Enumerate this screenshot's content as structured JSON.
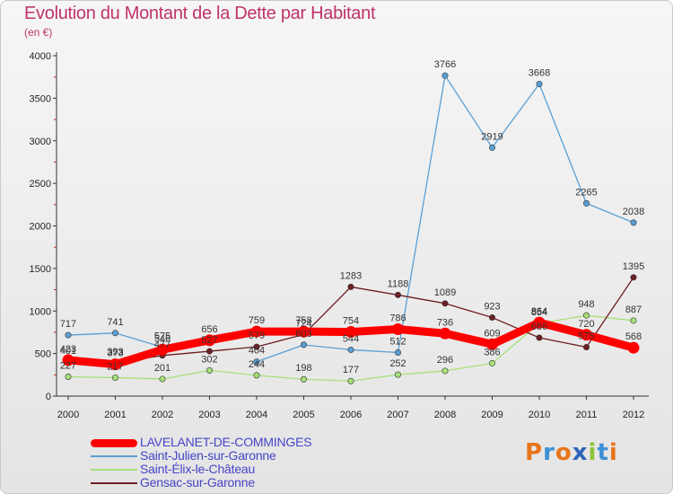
{
  "header": {
    "title": "Evolution du Montant de la Dette par Habitant",
    "subtitle": "(en €)"
  },
  "logo": {
    "text": "Proxiti",
    "letters": [
      "P",
      "r",
      "o",
      "x",
      "i",
      "t",
      "i"
    ],
    "colors": [
      "#e8741c",
      "#3d8fd6",
      "#e8741c",
      "#2f64b8",
      "#8fc43a",
      "#3d8fd6",
      "#e8741c"
    ]
  },
  "chart_data": {
    "type": "line",
    "title": "Evolution du Montant de la Dette par Habitant",
    "subtitle": "(en €)",
    "xlabel": "",
    "ylabel": "",
    "x": [
      "2000",
      "2001",
      "2002",
      "2003",
      "2004",
      "2005",
      "2006",
      "2007",
      "2008",
      "2009",
      "2010",
      "2011",
      "2012"
    ],
    "ylim": [
      0,
      4000
    ],
    "yticks": [
      0,
      500,
      1000,
      1500,
      2000,
      2500,
      3000,
      3500,
      4000
    ],
    "grid": false,
    "legend_position": "bottom-left",
    "series": [
      {
        "name": "LAVELANET-DE-COMMINGES",
        "color": "#ff0000",
        "values": [
          423,
          373,
          546,
          656,
          759,
          758,
          754,
          786,
          736,
          609,
          864,
          720,
          568
        ],
        "labels": [
          "423",
          "373",
          "546",
          "656",
          "759",
          "758",
          "754",
          "786",
          "736",
          "609",
          "864",
          "720",
          "568"
        ]
      },
      {
        "name": "Saint-Julien-sur-Garonne",
        "color": "#5a9fd4",
        "values": [
          717,
          741,
          575,
          null,
          404,
          603,
          544,
          512,
          3766,
          2919,
          3668,
          2265,
          2038
        ],
        "labels": [
          "717",
          "741",
          "575",
          "",
          "404",
          "603",
          "544",
          "512",
          "3766",
          "2919",
          "3668",
          "2265",
          "2038"
        ]
      },
      {
        "name": "Saint-Élix-le-Château",
        "color": "#a6e07a",
        "values": [
          227,
          217,
          201,
          302,
          244,
          198,
          177,
          252,
          296,
          386,
          854,
          948,
          887
        ],
        "labels": [
          "227",
          "217",
          "201",
          "302",
          "244",
          "198",
          "177",
          "252",
          "296",
          "386",
          "854",
          "948",
          "887"
        ]
      },
      {
        "name": "Gensac-sur-Garonne",
        "color": "#6e1e22",
        "values": [
          401,
          393,
          477,
          527,
          579,
          724,
          1283,
          1188,
          1089,
          923,
          686,
          575,
          1395
        ],
        "labels": [
          "401",
          "393",
          "477",
          "527",
          "579",
          "724",
          "1283",
          "1188",
          "1089",
          "923",
          "686",
          "575",
          "1395"
        ]
      }
    ]
  },
  "legend": [
    {
      "label": "LAVELANET-DE-COMMINGES",
      "color": "#ff0000"
    },
    {
      "label": "Saint-Julien-sur-Garonne",
      "color": "#5a9fd4"
    },
    {
      "label": "Saint-Élix-le-Château",
      "color": "#a6e07a"
    },
    {
      "label": "Gensac-sur-Garonne",
      "color": "#6e1e22"
    }
  ]
}
